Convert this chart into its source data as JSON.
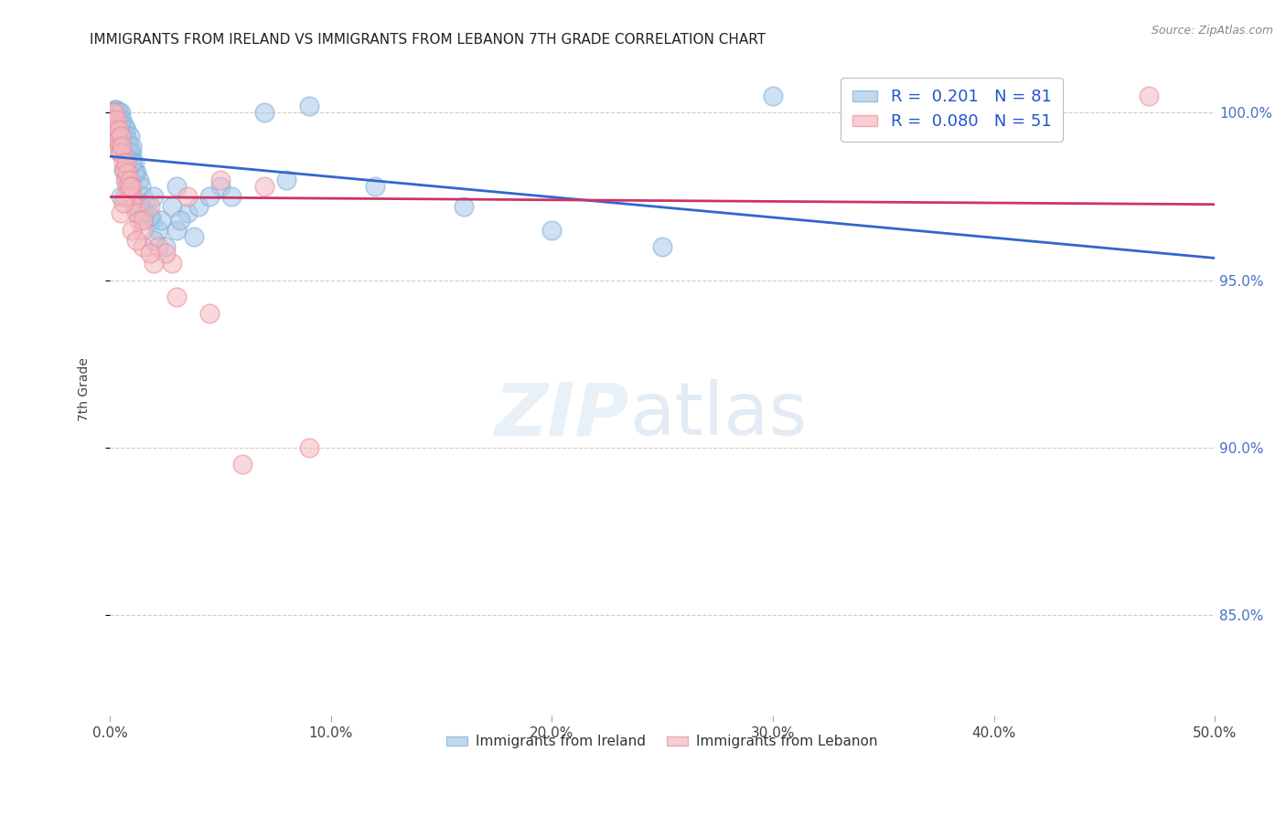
{
  "title": "IMMIGRANTS FROM IRELAND VS IMMIGRANTS FROM LEBANON 7TH GRADE CORRELATION CHART",
  "source": "Source: ZipAtlas.com",
  "ylabel": "7th Grade",
  "xmin": 0.0,
  "xmax": 50.0,
  "ymin": 82.0,
  "ymax": 101.5,
  "yticks": [
    85.0,
    90.0,
    95.0,
    100.0
  ],
  "xticks": [
    0.0,
    10.0,
    20.0,
    30.0,
    40.0,
    50.0
  ],
  "xtick_labels": [
    "0.0%",
    "10.0%",
    "20.0%",
    "30.0%",
    "40.0%",
    "50.0%"
  ],
  "ytick_labels": [
    "85.0%",
    "90.0%",
    "95.0%",
    "100.0%"
  ],
  "ireland_color": "#a8c8e8",
  "lebanon_color": "#f4b8c0",
  "ireland_R": 0.201,
  "ireland_N": 81,
  "lebanon_R": 0.08,
  "lebanon_N": 51,
  "ireland_line_color": "#3366cc",
  "lebanon_line_color": "#cc3366",
  "legend_label_ireland": "Immigrants from Ireland",
  "legend_label_lebanon": "Immigrants from Lebanon",
  "ireland_x": [
    0.1,
    0.1,
    0.1,
    0.15,
    0.15,
    0.2,
    0.2,
    0.2,
    0.25,
    0.25,
    0.3,
    0.3,
    0.3,
    0.35,
    0.35,
    0.4,
    0.4,
    0.4,
    0.45,
    0.45,
    0.5,
    0.5,
    0.5,
    0.55,
    0.55,
    0.6,
    0.6,
    0.65,
    0.65,
    0.7,
    0.7,
    0.75,
    0.8,
    0.8,
    0.85,
    0.9,
    0.9,
    0.95,
    1.0,
    1.0,
    1.1,
    1.2,
    1.3,
    1.4,
    1.5,
    1.7,
    1.9,
    2.2,
    2.5,
    3.0,
    3.5,
    4.0,
    5.0,
    7.0,
    9.0,
    30.0,
    2.0,
    3.0,
    0.5,
    1.5,
    2.8,
    4.5,
    0.8,
    1.1,
    1.6,
    2.3,
    3.8,
    5.5,
    8.0,
    12.0,
    16.0,
    20.0,
    25.0,
    0.6,
    1.0,
    1.3,
    2.0,
    3.2,
    0.7,
    1.8,
    0.4
  ],
  "ireland_y": [
    100.0,
    99.5,
    99.8,
    100.0,
    99.6,
    100.1,
    99.8,
    99.5,
    100.0,
    99.7,
    100.1,
    99.9,
    99.5,
    100.0,
    99.7,
    99.8,
    99.5,
    100.0,
    99.6,
    99.3,
    100.0,
    99.7,
    99.4,
    99.5,
    99.8,
    99.4,
    99.2,
    99.6,
    99.0,
    99.3,
    98.8,
    99.5,
    99.2,
    98.9,
    99.0,
    98.8,
    99.3,
    98.5,
    98.8,
    99.0,
    98.5,
    98.2,
    98.0,
    97.8,
    97.5,
    97.2,
    96.8,
    96.5,
    96.0,
    96.5,
    97.0,
    97.2,
    97.8,
    100.0,
    100.2,
    100.5,
    97.5,
    97.8,
    97.5,
    97.0,
    97.2,
    97.5,
    98.0,
    98.2,
    97.0,
    96.8,
    96.3,
    97.5,
    98.0,
    97.8,
    97.2,
    96.5,
    96.0,
    98.3,
    98.5,
    97.3,
    96.2,
    96.8,
    98.7,
    96.9,
    99.1
  ],
  "lebanon_x": [
    0.1,
    0.1,
    0.15,
    0.2,
    0.2,
    0.25,
    0.3,
    0.3,
    0.35,
    0.4,
    0.4,
    0.45,
    0.5,
    0.5,
    0.55,
    0.6,
    0.65,
    0.7,
    0.75,
    0.8,
    0.8,
    0.9,
    0.9,
    1.0,
    1.0,
    1.1,
    1.2,
    1.3,
    1.5,
    1.8,
    2.2,
    2.8,
    1.5,
    2.5,
    3.5,
    5.0,
    7.0,
    9.0,
    0.5,
    0.7,
    1.0,
    1.5,
    2.0,
    3.0,
    4.5,
    6.0,
    0.6,
    0.9,
    1.2,
    1.8,
    47.0
  ],
  "lebanon_y": [
    100.0,
    99.5,
    99.8,
    99.6,
    100.0,
    99.3,
    99.5,
    99.8,
    99.2,
    99.5,
    99.0,
    98.8,
    99.3,
    98.8,
    99.0,
    98.5,
    98.3,
    98.0,
    98.5,
    97.8,
    98.2,
    97.5,
    98.0,
    97.8,
    97.5,
    97.2,
    97.0,
    96.8,
    96.5,
    97.2,
    96.0,
    95.5,
    96.8,
    95.8,
    97.5,
    98.0,
    97.8,
    90.0,
    97.0,
    97.5,
    96.5,
    96.0,
    95.5,
    94.5,
    94.0,
    89.5,
    97.3,
    97.8,
    96.2,
    95.8,
    100.5
  ]
}
